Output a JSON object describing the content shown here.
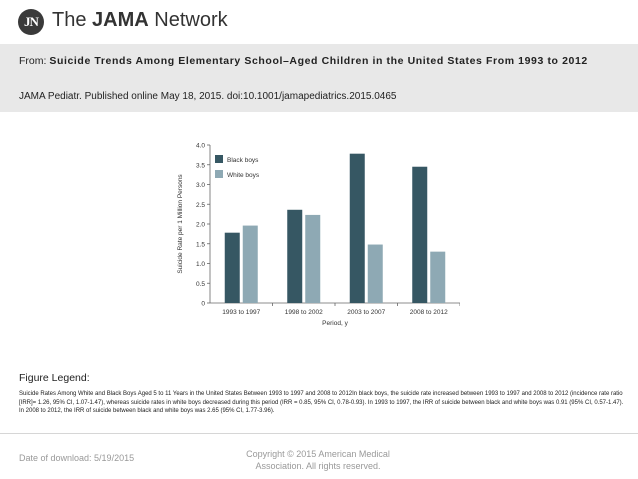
{
  "header": {
    "logo_text": "JN",
    "brand_prefix": "The ",
    "brand_bold": "JAMA",
    "brand_suffix": " Network"
  },
  "citation": {
    "from_label": "From: ",
    "article_title": "Suicide Trends Among Elementary School–Aged Children in the United States From 1993 to 2012",
    "journal_line": "JAMA Pediatr. Published online  May 18, 2015. doi:10.1001/jamapediatrics.2015.0465"
  },
  "chart_data": {
    "type": "bar",
    "categories": [
      "1993 to 1997",
      "1998 to 2002",
      "2003 to 2007",
      "2008 to 2012"
    ],
    "series": [
      {
        "name": "Black boys",
        "values": [
          1.78,
          2.36,
          3.78,
          3.45
        ],
        "color": "#365763"
      },
      {
        "name": "White boys",
        "values": [
          1.96,
          2.23,
          1.48,
          1.3
        ],
        "color": "#8ea9b4"
      }
    ],
    "title": "",
    "xlabel": "Period, y",
    "ylabel": "Suicide Rate per 1 Million Persons",
    "ylim": [
      0,
      4.0
    ],
    "yticks": [
      "0",
      "0.5",
      "1.0",
      "1.5",
      "2.0",
      "2.5",
      "3.0",
      "3.5",
      "4.0"
    ],
    "legend_position": "top-left"
  },
  "figure_legend": {
    "title": "Figure Legend:",
    "text": "Suicide Rates Among White and Black Boys Aged 5 to 11 Years in the United States Between 1993 to 1997 and 2008 to 2012In black boys, the suicide rate increased between 1993 to 1997 and 2008 to 2012 (incidence rate ratio [IRR]= 1.26, 95% CI, 1.07-1.47), whereas suicide rates in white boys decreased during this period (IRR = 0.85, 95% CI, 0.78-0.93). In 1993 to 1997, the IRR of suicide between black and white boys was 0.91 (95% CI, 0.57-1.47). In 2008 to 2012, the IRR of suicide between black and white boys was 2.65 (95% CI, 1.77-3.96)."
  },
  "footer": {
    "download_date": "Date of download:  5/19/2015",
    "copyright_line1": "Copyright © 2015 American Medical",
    "copyright_line2": "Association. All rights reserved."
  }
}
